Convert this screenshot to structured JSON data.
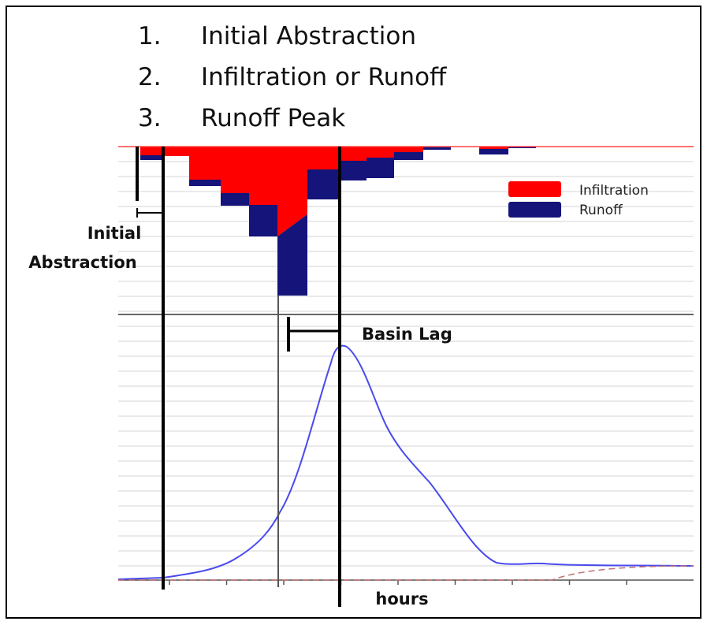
{
  "list": [
    {
      "number": "1.",
      "text": "Initial Abstraction"
    },
    {
      "number": "2.",
      "text": "Infiltration or Runoff"
    },
    {
      "number": "3.",
      "text": "Runoff Peak"
    }
  ],
  "legend": [
    "Infiltration",
    "Runoff"
  ],
  "annotations": {
    "initial_abstraction": [
      "Initial",
      "Abstraction"
    ],
    "basin_lag": "Basin Lag",
    "x_axis": "hours"
  }
}
